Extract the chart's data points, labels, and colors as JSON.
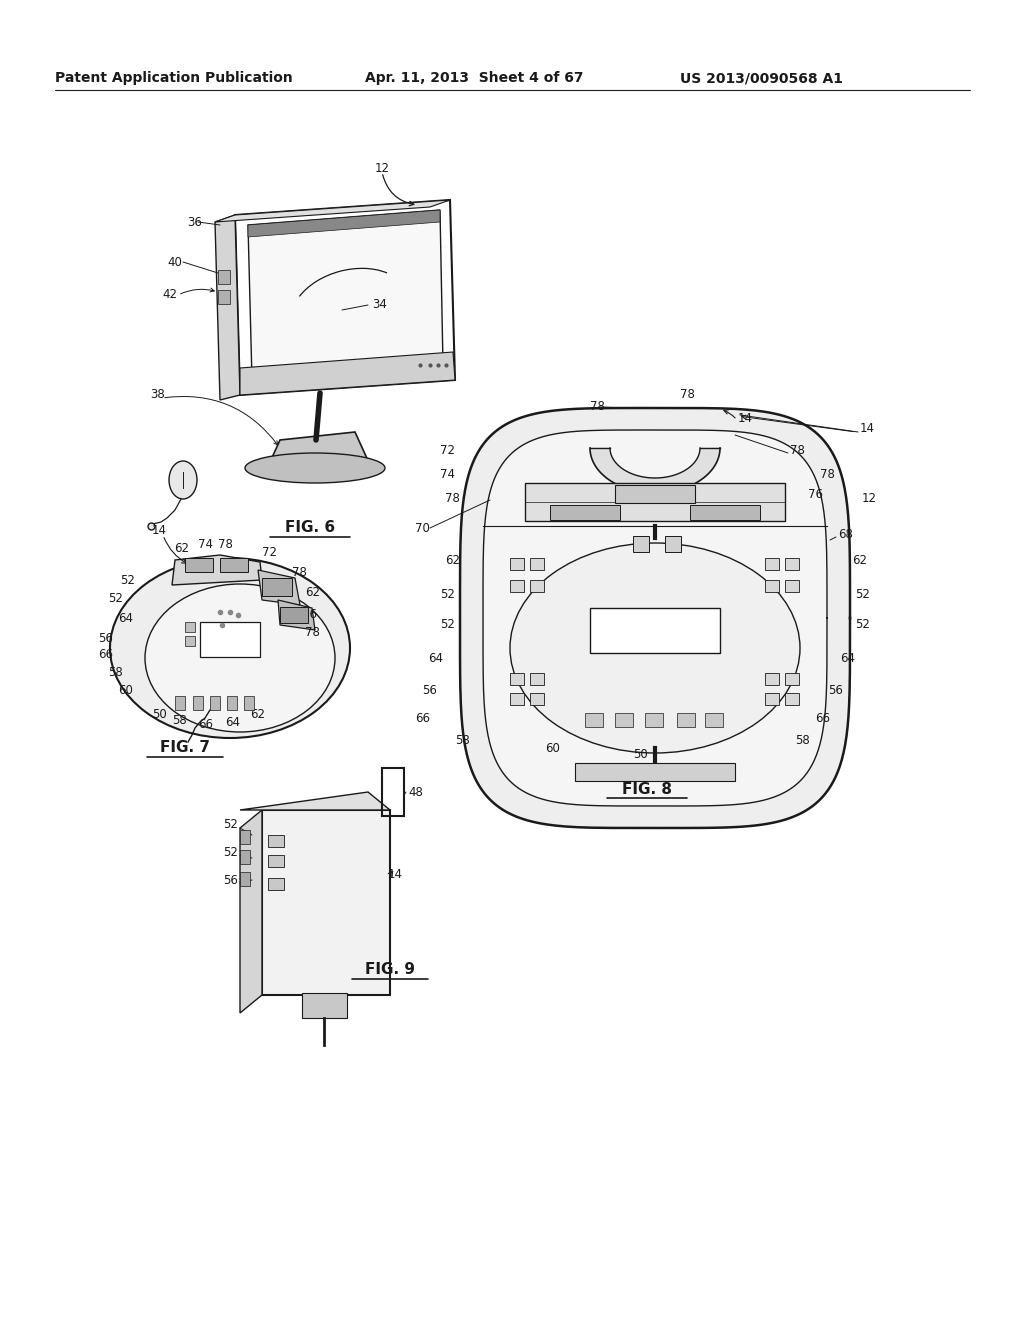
{
  "background_color": "#ffffff",
  "header_left": "Patent Application Publication",
  "header_center": "Apr. 11, 2013  Sheet 4 of 67",
  "header_right": "US 2013/0090568 A1",
  "fig6_label": "FIG. 6",
  "fig7_label": "FIG. 7",
  "fig8_label": "FIG. 8",
  "fig9_label": "FIG. 9",
  "text_color": "#1a1a1a",
  "line_color": "#1a1a1a",
  "header_fontsize": 10,
  "label_fontsize": 10,
  "ref_fontsize": 8.5
}
